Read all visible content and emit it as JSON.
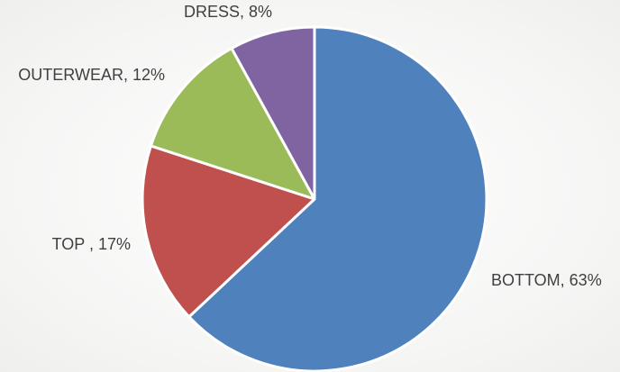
{
  "chart_data": {
    "type": "pie",
    "title": "",
    "legend": "none",
    "start_angle_deg": 0,
    "direction": "clockwise",
    "slices": [
      {
        "category": "BOTTOM",
        "value": 63,
        "label": "BOTTOM, 63%",
        "color": "#4f81bd",
        "label_anchor": "start"
      },
      {
        "category": "TOP",
        "value": 17,
        "label": "TOP , 17%",
        "color": "#c0504d",
        "label_anchor": "end"
      },
      {
        "category": "OUTERWEAR",
        "value": 12,
        "label": "OUTERWEAR, 12%",
        "color": "#9bbb59",
        "label_anchor": "end"
      },
      {
        "category": "DRESS",
        "value": 8,
        "label": "DRESS, 8%",
        "color": "#8064a2",
        "label_anchor": "end"
      }
    ]
  }
}
